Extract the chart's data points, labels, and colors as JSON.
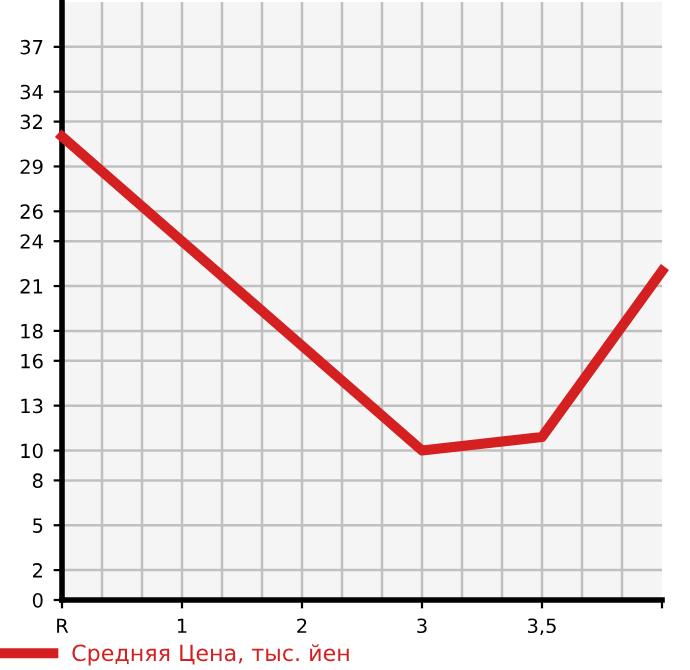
{
  "chart_data": {
    "type": "line",
    "categories": [
      "R",
      "1",
      "2",
      "3",
      "3,5",
      null
    ],
    "series": [
      {
        "name": "Средняя Цена, тыс. йен",
        "color": "#d42020",
        "values": [
          31,
          24,
          17,
          10,
          10.9,
          22
        ]
      }
    ],
    "ylim": [
      0,
      40
    ],
    "yticks": [
      0,
      2,
      5,
      8,
      10,
      13,
      16,
      18,
      21,
      24,
      26,
      29,
      32,
      34,
      37
    ],
    "grid": true,
    "legend": "bottom left",
    "marker": "none",
    "line_style": "solid"
  }
}
